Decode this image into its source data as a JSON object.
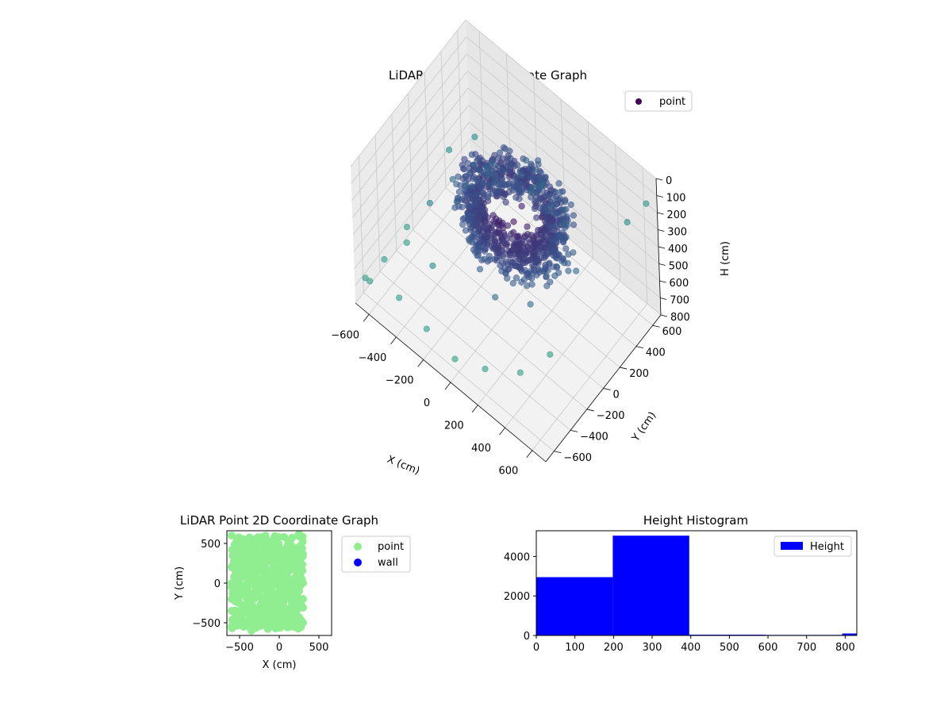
{
  "colors": {
    "point_3d": "#440154",
    "point_2d": "#90ee90",
    "wall": "#0000ff",
    "hist": "#0000ff",
    "pane_left": "#ebebeb",
    "pane_right": "#e6e6e6",
    "pane_floor": "#f2f2f2",
    "grid": "#c8c8c8"
  },
  "chart_data": [
    {
      "type": "scatter",
      "projection": "3d",
      "title": "LiDAR Point 3D Coordinate Graph",
      "xlabel": "X (cm)",
      "ylabel": "Y (cm)",
      "zlabel": "H (cm)",
      "xlim": [
        -700,
        700
      ],
      "ylim": [
        -700,
        700
      ],
      "zlim": [
        0,
        800
      ],
      "z_inverted": true,
      "xticks": [
        -600,
        -400,
        -200,
        0,
        200,
        400,
        600
      ],
      "yticks": [
        -600,
        -400,
        -200,
        0,
        200,
        400,
        600
      ],
      "zticks": [
        0,
        100,
        200,
        300,
        400,
        500,
        600,
        700,
        800
      ],
      "xtick_labels": [
        "−600",
        "−400",
        "−200",
        "0",
        "200",
        "400",
        "600"
      ],
      "ytick_labels": [
        "−600",
        "−400",
        "−200",
        "0",
        "200",
        "400",
        "600"
      ],
      "ztick_labels": [
        "0",
        "100",
        "200",
        "300",
        "400",
        "500",
        "600",
        "700",
        "800"
      ],
      "grid": true,
      "legend": {
        "position": "top-right",
        "entries": [
          "point"
        ]
      },
      "series": [
        {
          "name": "point",
          "colormap": "viridis",
          "cluster_description_points": [
            [
              -300,
              100,
              350
            ],
            [
              -250,
              200,
              320
            ],
            [
              -200,
              300,
              300
            ],
            [
              -100,
              350,
              280
            ],
            [
              0,
              380,
              260
            ],
            [
              100,
              380,
              250
            ],
            [
              200,
              350,
              260
            ],
            [
              280,
              300,
              280
            ],
            [
              300,
              200,
              300
            ],
            [
              280,
              100,
              330
            ],
            [
              200,
              0,
              360
            ],
            [
              100,
              -50,
              380
            ],
            [
              0,
              -60,
              390
            ],
            [
              -100,
              -50,
              380
            ],
            [
              -200,
              0,
              370
            ],
            [
              -280,
              50,
              360
            ],
            [
              -150,
              150,
              330
            ],
            [
              0,
              200,
              320
            ],
            [
              150,
              150,
              330
            ],
            [
              0,
              100,
              350
            ]
          ],
          "outliers": [
            [
              -650,
              -650,
              650
            ],
            [
              -600,
              -500,
              600
            ],
            [
              -550,
              -300,
              500
            ],
            [
              -500,
              -100,
              450
            ],
            [
              -450,
              100,
              400
            ],
            [
              -650,
              -600,
              700
            ],
            [
              -400,
              -650,
              600
            ],
            [
              -200,
              -650,
              650
            ],
            [
              0,
              -640,
              700
            ],
            [
              200,
              -600,
              650
            ],
            [
              400,
              -500,
              600
            ],
            [
              500,
              -300,
              550
            ],
            [
              600,
              500,
              200
            ],
            [
              650,
              650,
              150
            ],
            [
              -600,
              300,
              450
            ],
            [
              -500,
              450,
              400
            ],
            [
              -300,
              -400,
              500
            ],
            [
              100,
              -300,
              480
            ],
            [
              300,
              -200,
              450
            ],
            [
              -620,
              -200,
              700
            ]
          ]
        }
      ]
    },
    {
      "type": "scatter",
      "title": "LiDAR Point 2D Coordinate Graph",
      "xlabel": "X (cm)",
      "ylabel": "Y (cm)",
      "xlim": [
        -660,
        660
      ],
      "ylim": [
        -660,
        660
      ],
      "xticks": [
        -500,
        0,
        500
      ],
      "yticks": [
        -500,
        0,
        500
      ],
      "xtick_labels": [
        "−500",
        "0",
        "500"
      ],
      "ytick_labels": [
        "−500",
        "0",
        "500"
      ],
      "legend": {
        "position": "outside-right",
        "entries": [
          "point",
          "wall"
        ]
      },
      "series": [
        {
          "name": "point",
          "description_points": [
            [
              -600,
              600
            ],
            [
              -550,
              500
            ],
            [
              -500,
              400
            ],
            [
              -450,
              300
            ],
            [
              -400,
              200
            ],
            [
              -350,
              100
            ],
            [
              -300,
              0
            ],
            [
              -250,
              -100
            ],
            [
              -200,
              -200
            ],
            [
              -150,
              -300
            ],
            [
              -100,
              -400
            ],
            [
              -50,
              -500
            ],
            [
              0,
              -550
            ],
            [
              50,
              -500
            ],
            [
              100,
              -400
            ],
            [
              150,
              -300
            ],
            [
              200,
              -200
            ],
            [
              250,
              -100
            ],
            [
              300,
              0
            ],
            [
              250,
              100
            ],
            [
              200,
              200
            ],
            [
              150,
              300
            ],
            [
              100,
              250
            ],
            [
              50,
              200
            ],
            [
              0,
              150
            ],
            [
              -100,
              100
            ],
            [
              -200,
              50
            ],
            [
              -300,
              -50
            ],
            [
              -400,
              -150
            ],
            [
              -500,
              -250
            ],
            [
              -600,
              -350
            ],
            [
              -550,
              -450
            ],
            [
              -450,
              -550
            ],
            [
              -350,
              -600
            ],
            [
              -250,
              -500
            ],
            [
              -150,
              -450
            ],
            [
              -50,
              -350
            ],
            [
              50,
              -250
            ],
            [
              150,
              -150
            ],
            [
              250,
              -50
            ],
            [
              -600,
              0
            ],
            [
              -600,
              200
            ],
            [
              -600,
              -200
            ],
            [
              -500,
              550
            ],
            [
              -400,
              450
            ],
            [
              -300,
              350
            ],
            [
              -200,
              250
            ],
            [
              -100,
              350
            ],
            [
              0,
              300
            ],
            [
              100,
              100
            ],
            [
              200,
              50
            ],
            [
              300,
              -200
            ],
            [
              -500,
              -500
            ],
            [
              -600,
              -550
            ],
            [
              0,
              400
            ],
            [
              -400,
              -300
            ],
            [
              -300,
              200
            ],
            [
              -200,
              -350
            ],
            [
              250,
              620
            ],
            [
              300,
              -500
            ],
            [
              200,
              -300
            ],
            [
              -550,
              100
            ]
          ]
        },
        {
          "name": "wall",
          "values": []
        }
      ]
    },
    {
      "type": "bar",
      "subtype": "histogram",
      "title": "Height Histogram",
      "xlabel": "",
      "ylabel": "",
      "xlim": [
        0,
        830
      ],
      "ylim": [
        0,
        5300
      ],
      "xticks": [
        0,
        100,
        200,
        300,
        400,
        500,
        600,
        700,
        800
      ],
      "yticks": [
        0,
        2000,
        4000
      ],
      "xtick_labels": [
        "0",
        "100",
        "200",
        "300",
        "400",
        "500",
        "600",
        "700",
        "800"
      ],
      "ytick_labels": [
        "0",
        "2000",
        "4000"
      ],
      "legend": {
        "position": "top-right",
        "entries": [
          "Height"
        ]
      },
      "series": [
        {
          "name": "Height",
          "bins": [
            [
              0,
              198
            ],
            [
              198,
              396
            ],
            [
              396,
              594
            ],
            [
              594,
              792
            ],
            [
              792,
              830
            ]
          ],
          "values": [
            2950,
            5050,
            40,
            30,
            100
          ]
        }
      ]
    }
  ]
}
